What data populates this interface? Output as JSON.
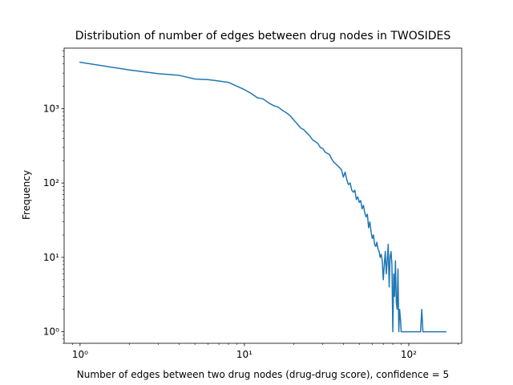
{
  "chart_data": {
    "type": "line",
    "title": "Distribution of number of edges between drug nodes in TWOSIDES",
    "xlabel": "Number of edges between two drug nodes (drug-drug score), confidence = 5",
    "ylabel": "Frequency",
    "xscale": "log",
    "yscale": "log",
    "xlim": [
      0.8,
      210
    ],
    "ylim": [
      0.7,
      6500
    ],
    "grid": false,
    "legend": "none",
    "color": "#1f77b4",
    "x_ticks": [
      {
        "value": 1,
        "label": "10⁰"
      },
      {
        "value": 10,
        "label": "10¹"
      },
      {
        "value": 100,
        "label": "10²"
      }
    ],
    "y_ticks": [
      {
        "value": 1,
        "label": "10⁰"
      },
      {
        "value": 10,
        "label": "10¹"
      },
      {
        "value": 100,
        "label": "10²"
      },
      {
        "value": 1000,
        "label": "10³"
      }
    ],
    "series": [
      {
        "x": [
          1,
          2,
          3,
          4,
          5,
          6,
          7,
          8,
          9,
          10,
          11,
          12,
          13,
          14,
          15,
          16,
          17,
          18,
          19,
          20,
          21,
          22,
          23,
          24,
          25,
          26,
          27,
          28,
          29,
          30,
          31,
          32,
          33,
          34,
          35,
          36,
          37,
          38,
          39,
          40,
          41,
          42,
          43,
          44,
          45,
          46,
          47,
          48,
          49,
          50,
          51,
          52,
          53,
          54,
          55,
          56,
          57,
          58,
          59,
          60,
          61,
          62,
          63,
          64,
          65,
          66,
          67,
          68,
          69,
          70,
          71,
          72,
          73,
          74,
          75,
          76,
          77,
          78,
          79,
          80,
          81,
          82,
          83,
          84,
          85,
          86,
          87,
          88,
          89,
          90,
          91,
          92,
          93,
          94,
          95,
          96,
          98,
          100,
          105,
          110,
          115,
          118,
          120,
          122,
          130,
          140,
          150,
          160,
          168
        ],
        "y": [
          4200,
          3300,
          2950,
          2800,
          2500,
          2450,
          2350,
          2250,
          2000,
          1800,
          1600,
          1400,
          1350,
          1200,
          1100,
          1050,
          950,
          880,
          800,
          700,
          620,
          550,
          520,
          470,
          430,
          380,
          360,
          340,
          300,
          290,
          260,
          250,
          240,
          210,
          190,
          180,
          170,
          160,
          150,
          120,
          140,
          110,
          95,
          100,
          80,
          75,
          80,
          60,
          65,
          55,
          58,
          45,
          50,
          40,
          35,
          38,
          25,
          30,
          22,
          18,
          20,
          15,
          14,
          16,
          13,
          12,
          10,
          11,
          9,
          5,
          8,
          12,
          6,
          9,
          15,
          4,
          10,
          12,
          8,
          1,
          6,
          3,
          9,
          2.5,
          2,
          7,
          1,
          2,
          1.5,
          1,
          1,
          1,
          1,
          1,
          1,
          1,
          1,
          1,
          1,
          1,
          1,
          1,
          2,
          1,
          1,
          1,
          1,
          1,
          1
        ]
      }
    ]
  }
}
